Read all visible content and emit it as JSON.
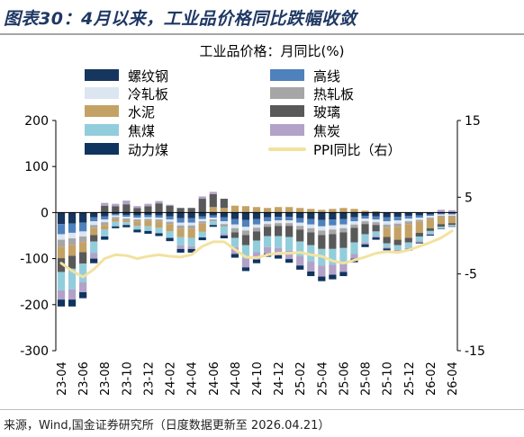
{
  "header": {
    "title": "图表30：4月以来，工业品价格同比跌幅收敛"
  },
  "footer": {
    "source_note": "来源，Wind,国金证券研究所（日度数据更新至 2026.04.21）"
  },
  "chart_data": {
    "type": "bar",
    "stacked": true,
    "title": "工业品价格：月同比(%)",
    "x": [
      "23-04",
      "23-05",
      "23-06",
      "23-07",
      "23-08",
      "23-09",
      "23-10",
      "23-11",
      "23-12",
      "24-01",
      "24-02",
      "24-03",
      "24-04",
      "24-05",
      "24-06",
      "24-07",
      "24-08",
      "24-09",
      "24-10",
      "24-11",
      "24-12",
      "25-01",
      "25-02",
      "25-03",
      "25-04",
      "25-05",
      "25-06",
      "25-07",
      "25-08",
      "25-09",
      "25-10",
      "25-11",
      "25-12",
      "26-01",
      "26-02",
      "26-03",
      "26-04"
    ],
    "xticks": [
      "23-04",
      "23-06",
      "23-08",
      "23-10",
      "23-12",
      "24-02",
      "24-04",
      "24-06",
      "24-08",
      "24-10",
      "24-12",
      "25-02",
      "25-04",
      "25-06",
      "25-08",
      "25-10",
      "25-12",
      "26-02",
      "26-04"
    ],
    "y_left": {
      "lim": [
        -300,
        200
      ],
      "ticks": [
        -300,
        -200,
        -100,
        0,
        100,
        200
      ]
    },
    "y_right": {
      "lim": [
        -15,
        15
      ],
      "ticks": [
        -15,
        -5,
        5,
        15
      ]
    },
    "grid": false,
    "legend_position": "top",
    "series": [
      {
        "name": "螺纹钢",
        "color": "#17365d",
        "values": [
          -25,
          -24,
          -22,
          -10,
          -8,
          -3,
          -5,
          -6,
          -5,
          -6,
          -8,
          -12,
          -12,
          -8,
          -6,
          -10,
          -14,
          -16,
          -14,
          -10,
          -9,
          -9,
          -12,
          -14,
          -16,
          -15,
          -14,
          -10,
          -7,
          -8,
          -10,
          -9,
          -7,
          -6,
          -4,
          -2,
          -2
        ]
      },
      {
        "name": "高线",
        "color": "#4f81bd",
        "values": [
          -22,
          -20,
          -19,
          -9,
          -7,
          -3,
          -4,
          -5,
          -5,
          -5,
          -7,
          -10,
          -10,
          -6,
          -5,
          -9,
          -12,
          -15,
          -12,
          -9,
          -8,
          -8,
          -10,
          -12,
          -14,
          -13,
          -12,
          -9,
          -6,
          -7,
          -9,
          -8,
          -6,
          -5,
          -3,
          -2,
          -2
        ]
      },
      {
        "name": "冷轧板",
        "color": "#dce6f1",
        "values": [
          -12,
          -12,
          -11,
          -8,
          -6,
          -4,
          -4,
          -4,
          -4,
          -4,
          -5,
          -6,
          -6,
          -5,
          -4,
          -6,
          -8,
          -8,
          -7,
          -6,
          -6,
          -6,
          -7,
          -8,
          -9,
          -9,
          -8,
          -7,
          -6,
          -6,
          -7,
          -7,
          -6,
          -5,
          -4,
          -3,
          -3
        ]
      },
      {
        "name": "热轧板",
        "color": "#a6a6a6",
        "values": [
          -15,
          -14,
          -12,
          -7,
          -6,
          -4,
          -4,
          -4,
          -4,
          -4,
          -5,
          -7,
          -7,
          -5,
          -4,
          -6,
          -9,
          -10,
          -8,
          -6,
          -6,
          -6,
          -8,
          -9,
          -10,
          -10,
          -9,
          -7,
          -6,
          -6,
          -7,
          -7,
          -6,
          -4,
          -3,
          -2,
          -2
        ]
      },
      {
        "name": "水泥",
        "color": "#c4a265",
        "values": [
          -25,
          -24,
          -22,
          -15,
          -10,
          -6,
          -4,
          -10,
          -12,
          -14,
          -16,
          -18,
          -20,
          -18,
          12,
          10,
          15,
          14,
          12,
          10,
          12,
          12,
          10,
          8,
          6,
          8,
          10,
          8,
          4,
          3,
          -20,
          -28,
          -30,
          -24,
          -20,
          -16,
          -14
        ]
      },
      {
        "name": "玻璃",
        "color": "#595959",
        "values": [
          -30,
          -28,
          -25,
          -14,
          15,
          14,
          18,
          10,
          14,
          20,
          15,
          10,
          10,
          30,
          28,
          20,
          -12,
          -22,
          -20,
          -20,
          -22,
          -24,
          -26,
          -28,
          -30,
          -32,
          -34,
          -32,
          -22,
          -14,
          -14,
          -12,
          -10,
          -8,
          -6,
          -6,
          -4
        ]
      },
      {
        "name": "焦煤",
        "color": "#92cddc",
        "values": [
          -40,
          -45,
          -40,
          -25,
          -15,
          -10,
          -6,
          -8,
          -10,
          -12,
          -14,
          -18,
          -18,
          -12,
          -8,
          -15,
          -20,
          -28,
          -25,
          -24,
          -26,
          -30,
          -32,
          -35,
          -36,
          -34,
          -32,
          -25,
          -18,
          -10,
          -8,
          -10,
          -12,
          -10,
          -6,
          -4,
          -3
        ]
      },
      {
        "name": "焦炭",
        "color": "#b2a2c7",
        "values": [
          -20,
          -22,
          -22,
          -12,
          6,
          5,
          8,
          4,
          5,
          5,
          2,
          -8,
          -6,
          5,
          5,
          -4,
          -15,
          -20,
          -16,
          -14,
          -16,
          -18,
          -20,
          -22,
          -24,
          -22,
          -20,
          -10,
          -4,
          -3,
          -3,
          -4,
          -4,
          -3,
          -2,
          6,
          5
        ]
      },
      {
        "name": "动力煤",
        "color": "#0f3460",
        "values": [
          -15,
          -15,
          -13,
          -10,
          -7,
          -4,
          -5,
          -6,
          -6,
          -6,
          -7,
          -8,
          -8,
          -6,
          -4,
          -6,
          -8,
          -8,
          -8,
          -7,
          -7,
          -8,
          -9,
          -10,
          -10,
          -10,
          -9,
          -8,
          -6,
          -5,
          -4,
          -3,
          -2,
          -2,
          -2,
          -1,
          -1
        ]
      }
    ],
    "line": {
      "name": "PPI同比（右）",
      "axis": "right",
      "color": "#f2e2a0",
      "values": [
        -3.6,
        -4.6,
        -5.4,
        -4.4,
        -3.0,
        -2.5,
        -2.6,
        -3.0,
        -2.7,
        -2.5,
        -2.7,
        -2.8,
        -2.5,
        -1.4,
        -0.8,
        -0.8,
        -1.8,
        -2.8,
        -2.9,
        -2.5,
        -2.3,
        -2.3,
        -2.2,
        -2.5,
        -2.7,
        -3.3,
        -3.6,
        -3.2,
        -2.8,
        -2.3,
        -2.1,
        -2.2,
        -1.9,
        -1.4,
        -0.9,
        -0.3,
        0.6
      ]
    }
  }
}
